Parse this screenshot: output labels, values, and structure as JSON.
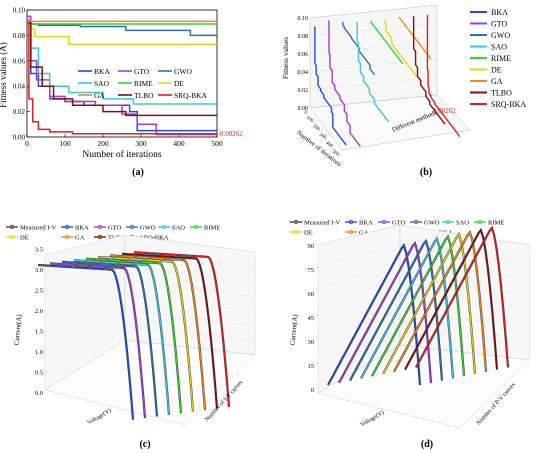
{
  "figure": {
    "panel_labels": [
      "(a)",
      "(b)",
      "(c)",
      "(d)"
    ]
  },
  "algorithms": [
    {
      "name": "BKA",
      "color": "#1f4fd8"
    },
    {
      "name": "GTO",
      "color": "#a33dd6"
    },
    {
      "name": "GWO",
      "color": "#2e6fb5"
    },
    {
      "name": "SAO",
      "color": "#3cc7df"
    },
    {
      "name": "RIME",
      "color": "#37d437"
    },
    {
      "name": "DE",
      "color": "#e6d619"
    },
    {
      "name": "GA",
      "color": "#f08a1c"
    },
    {
      "name": "TLBO",
      "color": "#7a1218"
    },
    {
      "name": "SRQ-BKA",
      "color": "#e0201c"
    }
  ],
  "chart_data": [
    {
      "type": "line",
      "panel": "(a)",
      "xlabel": "Number of iterations",
      "ylabel": "Fitness values (A)",
      "xlim": [
        0,
        500
      ],
      "ylim": [
        0,
        0.1
      ],
      "xticks": [
        "0",
        "100",
        "200",
        "300",
        "400",
        "500"
      ],
      "yticks": [
        "0.00",
        "0.02",
        "0.04",
        "0.06",
        "0.08",
        "0.10"
      ],
      "legend": "center",
      "annotation": "0.00262",
      "series": [
        {
          "name": "BKA",
          "x": [
            0,
            10,
            30,
            60,
            100,
            150,
            200,
            270,
            290,
            340,
            500
          ],
          "y": [
            0.09,
            0.05,
            0.04,
            0.03,
            0.028,
            0.025,
            0.025,
            0.02,
            0.005,
            0.005,
            0.005
          ]
        },
        {
          "name": "GTO",
          "x": [
            0,
            10,
            25,
            60,
            100,
            180,
            250,
            290,
            340,
            500
          ],
          "y": [
            0.095,
            0.06,
            0.045,
            0.032,
            0.028,
            0.025,
            0.018,
            0.01,
            0.002,
            0.002
          ]
        },
        {
          "name": "GWO",
          "x": [
            0,
            5,
            30,
            90,
            140,
            250,
            260,
            420,
            430,
            500
          ],
          "y": [
            0.092,
            0.089,
            0.088,
            0.088,
            0.087,
            0.087,
            0.084,
            0.084,
            0.08,
            0.08
          ]
        },
        {
          "name": "SAO",
          "x": [
            0,
            10,
            30,
            60,
            110,
            200,
            280,
            500
          ],
          "y": [
            0.09,
            0.07,
            0.05,
            0.04,
            0.035,
            0.03,
            0.026,
            0.026
          ]
        },
        {
          "name": "RIME",
          "x": [
            0,
            10,
            500
          ],
          "y": [
            0.09,
            0.089,
            0.089
          ]
        },
        {
          "name": "DE",
          "x": [
            0,
            10,
            20,
            100,
            110,
            500
          ],
          "y": [
            0.09,
            0.085,
            0.079,
            0.079,
            0.073,
            0.073
          ]
        },
        {
          "name": "GA",
          "x": [
            0,
            500
          ],
          "y": [
            0.091,
            0.091
          ]
        },
        {
          "name": "TLBO",
          "x": [
            0,
            10,
            40,
            70,
            120,
            200,
            260,
            500
          ],
          "y": [
            0.09,
            0.055,
            0.04,
            0.03,
            0.025,
            0.02,
            0.017,
            0.017
          ]
        },
        {
          "name": "SRQ-BKA",
          "x": [
            0,
            5,
            15,
            30,
            60,
            120,
            500
          ],
          "y": [
            0.09,
            0.03,
            0.012,
            0.006,
            0.004,
            0.0026,
            0.00262
          ]
        }
      ]
    },
    {
      "type": "line",
      "panel": "(b)",
      "zlabel": "Fitness values",
      "xlabel": "Number of iterations",
      "ylabel": "Different methods",
      "zticks": [
        "0.00",
        "0.02",
        "0.04",
        "0.06",
        "0.08",
        "0.10"
      ],
      "xticks": [
        "0",
        "100",
        "200",
        "300",
        "400",
        "500"
      ],
      "legend": "top-right",
      "annotation": "0.00262"
    },
    {
      "type": "line",
      "panel": "(c)",
      "ylabel": "Current(A)",
      "xlabel": "Voltage(V)",
      "depth_label": "Number of I-V curves",
      "yticks": [
        "0.0",
        "0.5",
        "1.0",
        "1.5",
        "2.0",
        "2.5",
        "3.0",
        "3.5"
      ],
      "legend": "top",
      "legend_extra": "Measured I-V"
    },
    {
      "type": "line",
      "panel": "(d)",
      "ylabel": "Current(A)",
      "xlabel": "Voltage(V)",
      "depth_label": "Number of P-V curves",
      "yticks": [
        "0",
        "15",
        "30",
        "45",
        "60",
        "75",
        "90"
      ],
      "legend": "top",
      "legend_extra": "Measured I-V"
    }
  ]
}
